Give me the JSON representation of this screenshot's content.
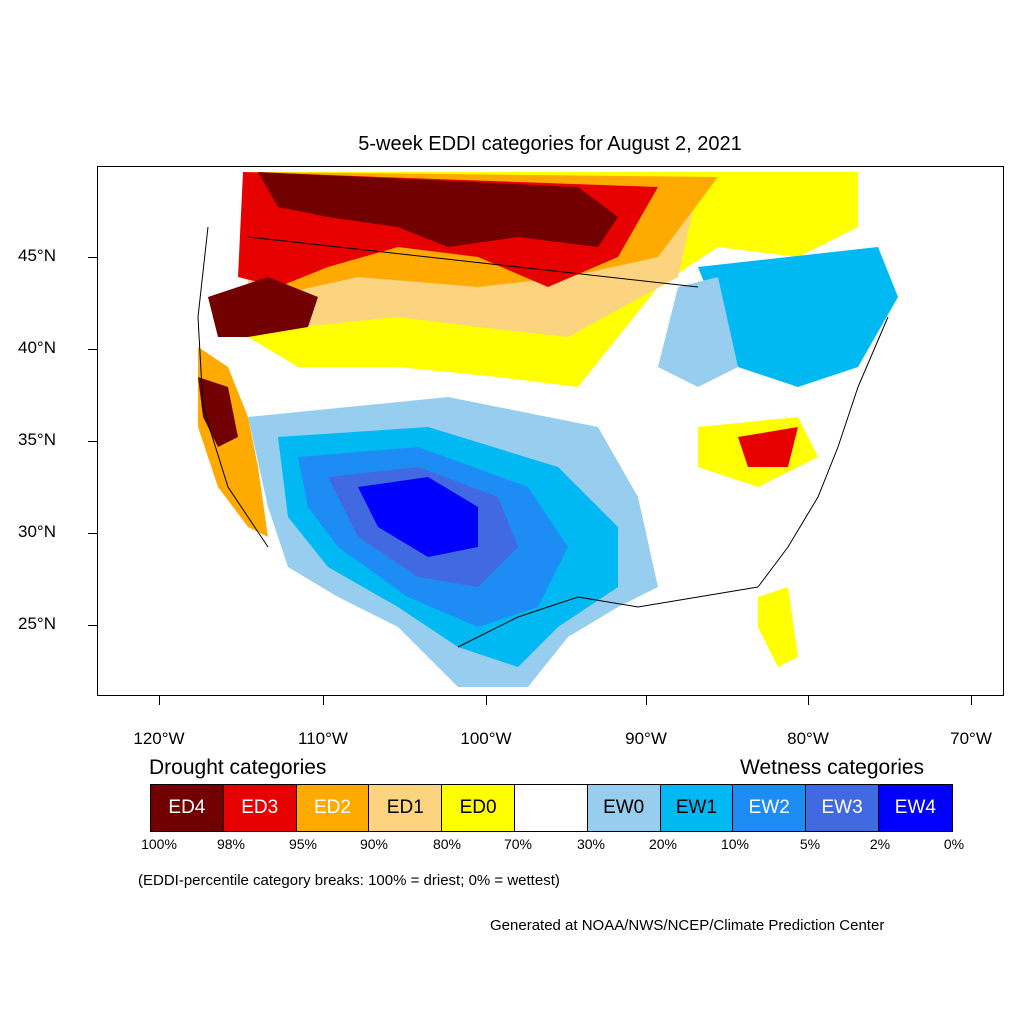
{
  "title": "5-week EDDI categories for August 2, 2021",
  "axes": {
    "lat_ticks": [
      "45°N",
      "40°N",
      "35°N",
      "30°N",
      "25°N"
    ],
    "lon_ticks": [
      "120°W",
      "110°W",
      "100°W",
      "90°W",
      "80°W",
      "70°W"
    ]
  },
  "legend": {
    "drought_heading": "Drought categories",
    "wetness_heading": "Wetness categories",
    "categories": [
      {
        "label": "ED4",
        "color": "#730000",
        "text_color": "#ffffff"
      },
      {
        "label": "ED3",
        "color": "#e60000",
        "text_color": "#ffffff"
      },
      {
        "label": "ED2",
        "color": "#ffaa00",
        "text_color": "#ffffff"
      },
      {
        "label": "ED1",
        "color": "#fcd37f",
        "text_color": "#000000"
      },
      {
        "label": "ED0",
        "color": "#ffff00",
        "text_color": "#000000"
      },
      {
        "label": "",
        "color": "#ffffff",
        "text_color": "#000000"
      },
      {
        "label": "EW0",
        "color": "#97cef0",
        "text_color": "#000000"
      },
      {
        "label": "EW1",
        "color": "#00b9f2",
        "text_color": "#000000"
      },
      {
        "label": "EW2",
        "color": "#1e8cf5",
        "text_color": "#ffffff"
      },
      {
        "label": "EW3",
        "color": "#4169e1",
        "text_color": "#ffffff"
      },
      {
        "label": "EW4",
        "color": "#0000ff",
        "text_color": "#ffffff"
      }
    ],
    "percent_breaks": [
      "100%",
      "98%",
      "95%",
      "90%",
      "80%",
      "70%",
      "30%",
      "20%",
      "10%",
      "5%",
      "2%",
      "0%"
    ]
  },
  "note": "(EDDI-percentile category breaks: 100% = driest; 0% = wettest)",
  "credit": "Generated at NOAA/NWS/NCEP/Climate Prediction Center"
}
